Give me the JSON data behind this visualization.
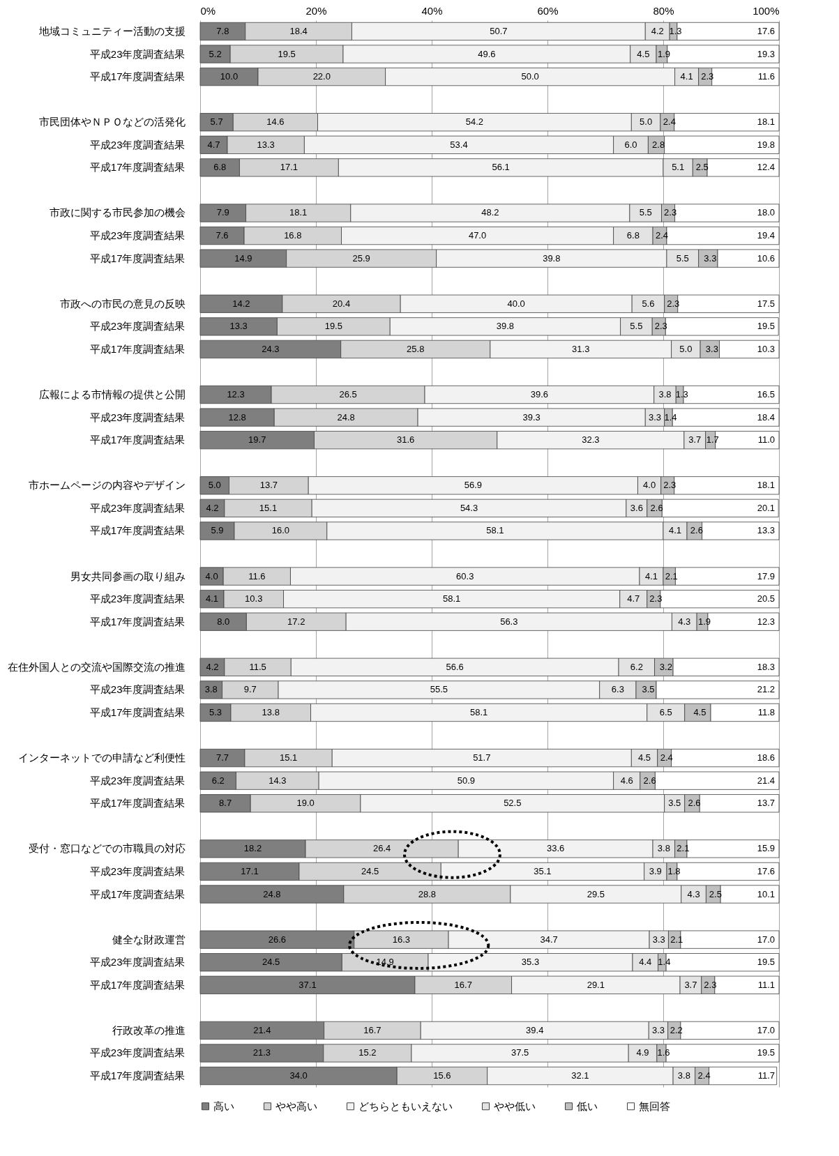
{
  "chart_data": {
    "type": "bar",
    "orientation": "horizontal",
    "stacked": true,
    "grid": "x",
    "legend": "bottom",
    "xlim": [
      0,
      100
    ],
    "xticks": [
      {
        "value": 0,
        "label": "0%"
      },
      {
        "value": 20,
        "label": "20%"
      },
      {
        "value": 40,
        "label": "40%"
      },
      {
        "value": 60,
        "label": "60%"
      },
      {
        "value": 80,
        "label": "80%"
      },
      {
        "value": 100,
        "label": "100%"
      }
    ],
    "categories": [
      "地域コミュニティー活動の支援",
      "平成23年度調査結果",
      "平成17年度調査結果",
      null,
      "市民団体やＮＰＯなどの活発化",
      "平成23年度調査結果",
      "平成17年度調査結果",
      null,
      "市政に関する市民参加の機会",
      "平成23年度調査結果",
      "平成17年度調査結果",
      null,
      "市政への市民の意見の反映",
      "平成23年度調査結果",
      "平成17年度調査結果",
      null,
      "広報による市情報の提供と公開",
      "平成23年度調査結果",
      "平成17年度調査結果",
      null,
      "市ホームページの内容やデザイン",
      "平成23年度調査結果",
      "平成17年度調査結果",
      null,
      "男女共同参画の取り組み",
      "平成23年度調査結果",
      "平成17年度調査結果",
      null,
      "在住外国人との交流や国際交流の推進",
      "平成23年度調査結果",
      "平成17年度調査結果",
      null,
      "インターネットでの申請など利便性",
      "平成23年度調査結果",
      "平成17年度調査結果",
      null,
      "受付・窓口などでの市職員の対応",
      "平成23年度調査結果",
      "平成17年度調査結果",
      null,
      "健全な財政運営",
      "平成23年度調査結果",
      "平成17年度調査結果",
      null,
      "行政改革の推進",
      "平成23年度調査結果",
      "平成17年度調査結果"
    ],
    "series": [
      {
        "name": "高い",
        "color": "#7f7f7f",
        "values": [
          7.8,
          5.2,
          10.0,
          null,
          5.7,
          4.7,
          6.8,
          null,
          7.9,
          7.6,
          14.9,
          null,
          14.2,
          13.3,
          24.3,
          null,
          12.3,
          12.8,
          19.7,
          null,
          5.0,
          4.2,
          5.9,
          null,
          4.0,
          4.1,
          8.0,
          null,
          4.2,
          3.8,
          5.3,
          null,
          7.7,
          6.2,
          8.7,
          null,
          18.2,
          17.1,
          24.8,
          null,
          26.6,
          24.5,
          37.1,
          null,
          21.4,
          21.3,
          34.0
        ],
        "value_labels": [
          "7.8",
          "5.2",
          "10.0",
          null,
          "5.7",
          "4.7",
          "6.8",
          null,
          "7.9",
          "7.6",
          "14.9",
          null,
          "14.2",
          "13.3",
          "24.3",
          null,
          "12.3",
          "12.8",
          "19.7",
          null,
          "5.0",
          "4.2",
          "5.9",
          null,
          "4.0",
          "4.1",
          "8.0",
          null,
          "4.2",
          "3.8",
          "5.3",
          null,
          "7.7",
          "6.2",
          "8.7",
          null,
          "18.2",
          "17.1",
          "24.8",
          null,
          "26.6",
          "24.5",
          "37.1",
          null,
          "21.4",
          "21.3",
          "34.0"
        ]
      },
      {
        "name": "やや高い",
        "color": "#d4d4d4",
        "values": [
          18.4,
          19.5,
          22.0,
          null,
          14.6,
          13.3,
          17.1,
          null,
          18.1,
          16.8,
          25.9,
          null,
          20.4,
          19.5,
          25.8,
          null,
          26.5,
          24.8,
          31.6,
          null,
          13.7,
          15.1,
          16.0,
          null,
          11.6,
          10.3,
          17.2,
          null,
          11.5,
          9.7,
          13.8,
          null,
          15.1,
          14.3,
          19.0,
          null,
          26.4,
          24.5,
          28.8,
          null,
          16.3,
          14.9,
          16.7,
          null,
          16.7,
          15.2,
          15.6
        ],
        "value_labels": [
          "18.4",
          "19.5",
          "22.0",
          null,
          "14.6",
          "13.3",
          "17.1",
          null,
          "18.1",
          "16.8",
          "25.9",
          null,
          "20.4",
          "19.5",
          "25.8",
          null,
          "26.5",
          "24.8",
          "31.6",
          null,
          "13.7",
          "15.1",
          "16.0",
          null,
          "11.6",
          "10.3",
          "17.2",
          null,
          "11.5",
          "9.7",
          "13.8",
          null,
          "15.1",
          "14.3",
          "19.0",
          null,
          "26.4",
          "24.5",
          "28.8",
          null,
          "16.3",
          "14.9",
          "16.7",
          null,
          "16.7",
          "15.2",
          "15.6"
        ]
      },
      {
        "name": "どちらともいえない",
        "color": "#f2f2f2",
        "values": [
          50.7,
          49.6,
          50.0,
          null,
          54.2,
          53.4,
          56.1,
          null,
          48.2,
          47.0,
          39.8,
          null,
          40.0,
          39.8,
          31.3,
          null,
          39.6,
          39.3,
          32.3,
          null,
          56.9,
          54.3,
          58.1,
          null,
          60.3,
          58.1,
          56.3,
          null,
          56.6,
          55.5,
          58.1,
          null,
          51.7,
          50.9,
          52.5,
          null,
          33.6,
          35.1,
          29.5,
          null,
          34.7,
          35.3,
          29.1,
          null,
          39.4,
          37.5,
          32.1
        ],
        "value_labels": [
          "50.7",
          "49.6",
          "50.0",
          null,
          "54.2",
          "53.4",
          "56.1",
          null,
          "48.2",
          "47.0",
          "39.8",
          null,
          "40.0",
          "39.8",
          "31.3",
          null,
          "39.6",
          "39.3",
          "32.3",
          null,
          "56.9",
          "54.3",
          "58.1",
          null,
          "60.3",
          "58.1",
          "56.3",
          null,
          "56.6",
          "55.5",
          "58.1",
          null,
          "51.7",
          "50.9",
          "52.5",
          null,
          "33.6",
          "35.1",
          "29.5",
          null,
          "34.7",
          "35.3",
          "29.1",
          null,
          "39.4",
          "37.5",
          "32.1"
        ]
      },
      {
        "name": "やや低い",
        "color": "#e3e3e3",
        "values": [
          4.2,
          4.5,
          4.1,
          null,
          5.0,
          6.0,
          5.1,
          null,
          5.5,
          6.8,
          5.5,
          null,
          5.6,
          5.5,
          5.0,
          null,
          3.8,
          3.3,
          3.7,
          null,
          4.0,
          3.6,
          4.1,
          null,
          4.1,
          4.7,
          4.3,
          null,
          6.2,
          6.3,
          6.5,
          null,
          4.5,
          4.6,
          3.5,
          null,
          3.8,
          3.9,
          4.3,
          null,
          3.3,
          4.4,
          3.7,
          null,
          3.3,
          4.9,
          3.8
        ],
        "value_labels": [
          "4.2",
          "4.5",
          "4.1",
          null,
          "5.0",
          "6.0",
          "5.1",
          null,
          "5.5",
          "6.8",
          "5.5",
          null,
          "5.6",
          "5.5",
          "5.0",
          null,
          "3.8",
          "3.3",
          "3.7",
          null,
          "4.0",
          "3.6",
          "4.1",
          null,
          "4.1",
          "4.7",
          "4.3",
          null,
          "6.2",
          "6.3",
          "6.5",
          null,
          "4.5",
          "4.6",
          "3.5",
          null,
          "3.8",
          "3.9",
          "4.3",
          null,
          "3.3",
          "4.4",
          "3.7",
          null,
          "3.3",
          "4.9",
          "3.8"
        ]
      },
      {
        "name": "低い",
        "color": "#bfbfbf",
        "values": [
          1.3,
          1.9,
          2.3,
          null,
          2.4,
          2.8,
          2.5,
          null,
          2.3,
          2.4,
          3.3,
          null,
          2.3,
          2.3,
          3.3,
          null,
          1.3,
          1.4,
          1.7,
          null,
          2.3,
          2.6,
          2.6,
          null,
          2.1,
          2.3,
          1.9,
          null,
          3.2,
          3.5,
          4.5,
          null,
          2.4,
          2.6,
          2.6,
          null,
          2.1,
          1.8,
          2.5,
          null,
          2.1,
          1.4,
          2.3,
          null,
          2.2,
          1.6,
          2.4
        ],
        "value_labels": [
          "1.3",
          "1.9",
          "2.3",
          null,
          "2.4",
          "2.8",
          "2.5",
          null,
          "2.3",
          "2.4",
          "3.3",
          null,
          "2.3",
          "2.3",
          "3.3",
          null,
          "1.3",
          "1.4",
          "1.7",
          null,
          "2.3",
          "2.6",
          "2.6",
          null,
          "2.1",
          "2.3",
          "1.9",
          null,
          "3.2",
          "3.5",
          "4.5",
          null,
          "2.4",
          "2.6",
          "2.6",
          null,
          "2.1",
          "1.8",
          "2.5",
          null,
          "2.1",
          "1.4",
          "2.3",
          null,
          "2.2",
          "1.6",
          "2.4"
        ]
      },
      {
        "name": "無回答",
        "color": "#ffffff",
        "values": [
          17.6,
          19.3,
          11.6,
          null,
          18.1,
          19.8,
          12.4,
          null,
          18.0,
          19.4,
          10.6,
          null,
          17.5,
          19.5,
          10.3,
          null,
          16.5,
          18.4,
          11.0,
          null,
          18.1,
          20.1,
          13.3,
          null,
          17.9,
          20.5,
          12.3,
          null,
          18.3,
          21.2,
          11.8,
          null,
          18.6,
          21.4,
          13.7,
          null,
          15.9,
          17.6,
          10.1,
          null,
          17.0,
          19.5,
          11.1,
          null,
          17.0,
          19.5,
          11.7
        ],
        "value_labels": [
          "17.6",
          "19.3",
          "11.6",
          null,
          "18.1",
          "19.8",
          "12.4",
          null,
          "18.0",
          "19.4",
          "10.6",
          null,
          "17.5",
          "19.5",
          "10.3",
          null,
          "16.5",
          "18.4",
          "11.0",
          null,
          "18.1",
          "20.1",
          "13.3",
          null,
          "17.9",
          "20.5",
          "12.3",
          null,
          "18.3",
          "21.2",
          "11.8",
          null,
          "18.6",
          "21.4",
          "13.7",
          null,
          "15.9",
          "17.6",
          "10.1",
          null,
          "17.0",
          "19.5",
          "11.1",
          null,
          "17.0",
          "19.5",
          "11.7"
        ]
      }
    ]
  }
}
